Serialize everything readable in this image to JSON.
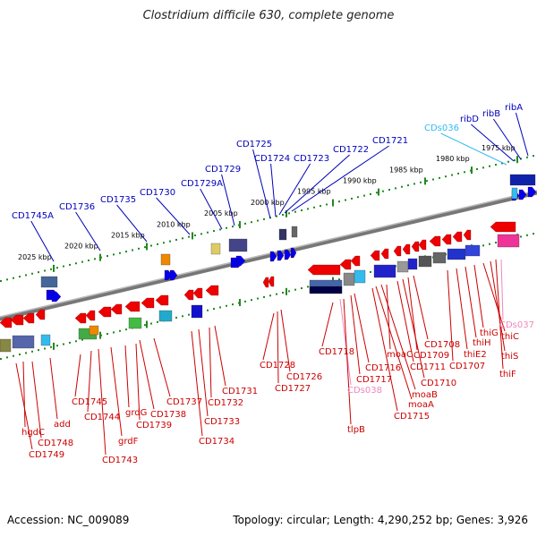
{
  "title": "Clostridium difficile 630, complete genome",
  "footer": {
    "accession": "Accession: NC_009089",
    "topology": "Topology: circular; Length: 4,290,252 bp; Genes: 3,926"
  },
  "colors": {
    "forward_label": "#0000bb",
    "reverse_label": "#cc0000",
    "cds_label_light": "#33bbee",
    "cds_label_pink": "#ee88bb",
    "forward_gene": "#0000ee",
    "reverse_gene": "#ee0000",
    "backbone": "#888888",
    "ticks": "#228822"
  },
  "scale": [
    "2025 kbp",
    "2020 kbp",
    "2015 kbp",
    "2010 kbp",
    "2005 kbp",
    "2000 kbp",
    "1995 kbp",
    "1990 kbp",
    "1985 kbp",
    "1980 kbp",
    "1975 kbp"
  ],
  "upper_labels": [
    "CD1745A",
    "CD1736",
    "CD1735",
    "CD1730",
    "CD1729A",
    "CD1729",
    "CD1725",
    "CD1724",
    "CD1723",
    "CD1722",
    "CD1721",
    "CDs036",
    "ribD",
    "ribB",
    "ribA"
  ],
  "lower_labels": [
    "hgdC",
    "CD1748",
    "CD1749",
    "add",
    "CD1745",
    "CD1744",
    "CD1743",
    "grdF",
    "grdG",
    "CD1739",
    "CD1738",
    "CD1737",
    "CD1734",
    "CD1733",
    "CD1732",
    "CD1731",
    "CD1728",
    "CD1727",
    "CD1726",
    "CD1718",
    "CDs038",
    "tlpB",
    "CD1717",
    "CD1716",
    "CD1715",
    "moaA",
    "moaB",
    "moaC",
    "CD1711",
    "CD1710",
    "CD1709",
    "CD1708",
    "CD1707",
    "thiE2",
    "thiH",
    "thiG",
    "thiC",
    "CDs037",
    "thiS",
    "thiF"
  ]
}
